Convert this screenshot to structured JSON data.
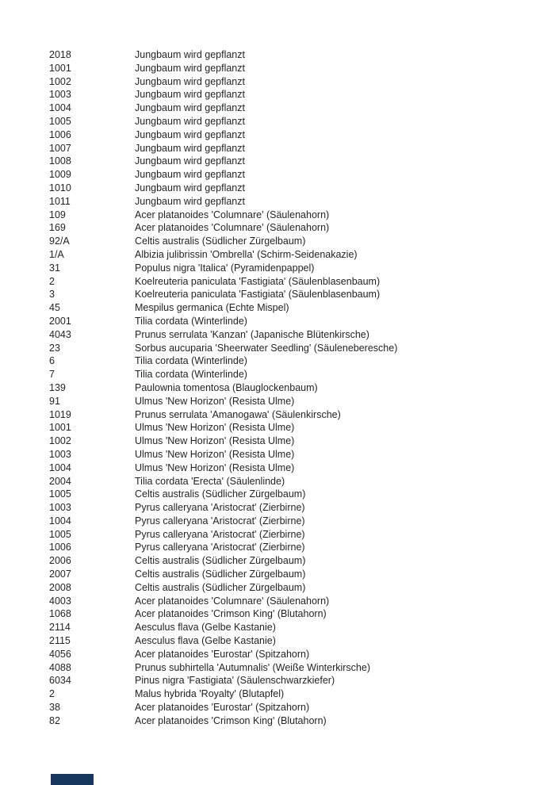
{
  "page": {
    "background": "#ffffff",
    "text_color": "#1f2124"
  },
  "tree_list": {
    "rows": [
      {
        "id": "2018",
        "species": "Jungbaum wird gepflanzt"
      },
      {
        "id": "1001",
        "species": "Jungbaum wird gepflanzt"
      },
      {
        "id": "1002",
        "species": "Jungbaum wird gepflanzt"
      },
      {
        "id": "1003",
        "species": "Jungbaum wird gepflanzt"
      },
      {
        "id": "1004",
        "species": "Jungbaum wird gepflanzt"
      },
      {
        "id": "1005",
        "species": "Jungbaum wird gepflanzt"
      },
      {
        "id": "1006",
        "species": "Jungbaum wird gepflanzt"
      },
      {
        "id": "1007",
        "species": "Jungbaum wird gepflanzt"
      },
      {
        "id": "1008",
        "species": "Jungbaum wird gepflanzt"
      },
      {
        "id": "1009",
        "species": "Jungbaum wird gepflanzt"
      },
      {
        "id": "1010",
        "species": "Jungbaum wird gepflanzt"
      },
      {
        "id": "1011",
        "species": "Jungbaum wird gepflanzt"
      },
      {
        "id": "109",
        "species": "Acer platanoides 'Columnare' (Säulenahorn)"
      },
      {
        "id": "169",
        "species": "Acer platanoides 'Columnare' (Säulenahorn)"
      },
      {
        "id": "92/A",
        "species": "Celtis australis (Südlicher Zürgelbaum)"
      },
      {
        "id": "1/A",
        "species": "Albizia julibrissin 'Ombrella' (Schirm-Seidenakazie)"
      },
      {
        "id": "31",
        "species": "Populus nigra 'Italica' (Pyramidenpappel)"
      },
      {
        "id": "2",
        "species": "Koelreuteria paniculata 'Fastigiata' (Säulenblasenbaum)"
      },
      {
        "id": "3",
        "species": "Koelreuteria paniculata 'Fastigiata' (Säulenblasenbaum)"
      },
      {
        "id": "45",
        "species": "Mespilus germanica (Echte Mispel)"
      },
      {
        "id": "2001",
        "species": "Tilia cordata (Winterlinde)"
      },
      {
        "id": "4043",
        "species": "Prunus serrulata 'Kanzan' (Japanische Blütenkirsche)"
      },
      {
        "id": "23",
        "species": "Sorbus aucuparia 'Sheerwater Seedling' (Säuleneberesche)"
      },
      {
        "id": "6",
        "species": "Tilia cordata (Winterlinde)"
      },
      {
        "id": "7",
        "species": "Tilia cordata (Winterlinde)"
      },
      {
        "id": "139",
        "species": "Paulownia tomentosa (Blauglockenbaum)"
      },
      {
        "id": "91",
        "species": "Ulmus 'New Horizon' (Resista Ulme)"
      },
      {
        "id": "1019",
        "species": "Prunus serrulata 'Amanogawa' (Säulenkirsche)"
      },
      {
        "id": "1001",
        "species": "Ulmus 'New Horizon' (Resista Ulme)"
      },
      {
        "id": "1002",
        "species": "Ulmus 'New Horizon' (Resista Ulme)"
      },
      {
        "id": "1003",
        "species": "Ulmus 'New Horizon' (Resista Ulme)"
      },
      {
        "id": "1004",
        "species": "Ulmus 'New Horizon' (Resista Ulme)"
      },
      {
        "id": "2004",
        "species": "Tilia cordata 'Erecta' (Säulenlinde)"
      },
      {
        "id": "1005",
        "species": "Celtis australis (Südlicher Zürgelbaum)"
      },
      {
        "id": "1003",
        "species": "Pyrus calleryana 'Aristocrat' (Zierbirne)"
      },
      {
        "id": "1004",
        "species": "Pyrus calleryana 'Aristocrat' (Zierbirne)"
      },
      {
        "id": "1005",
        "species": "Pyrus calleryana 'Aristocrat' (Zierbirne)"
      },
      {
        "id": "1006",
        "species": "Pyrus calleryana 'Aristocrat' (Zierbirne)"
      },
      {
        "id": "2006",
        "species": "Celtis australis (Südlicher Zürgelbaum)"
      },
      {
        "id": "2007",
        "species": "Celtis australis (Südlicher Zürgelbaum)"
      },
      {
        "id": "2008",
        "species": "Celtis australis (Südlicher Zürgelbaum)"
      },
      {
        "id": "4003",
        "species": "Acer platanoides 'Columnare' (Säulenahorn)"
      },
      {
        "id": "1068",
        "species": "Acer platanoides 'Crimson King' (Blutahorn)"
      },
      {
        "id": "2114",
        "species": "Aesculus flava (Gelbe Kastanie)"
      },
      {
        "id": "2115",
        "species": "Aesculus flava (Gelbe Kastanie)"
      },
      {
        "id": "4056",
        "species": "Acer platanoides 'Eurostar' (Spitzahorn)"
      },
      {
        "id": "4088",
        "species": "Prunus subhirtella 'Autumnalis' (Weiße Winterkirsche)"
      },
      {
        "id": "6034",
        "species": "Pinus nigra 'Fastigiata' (Säulenschwarzkiefer)"
      },
      {
        "id": "2",
        "species": "Malus hybrida 'Royalty' (Blutapfel)"
      },
      {
        "id": "38",
        "species": "Acer platanoides 'Eurostar' (Spitzahorn)"
      },
      {
        "id": "82",
        "species": "Acer platanoides 'Crimson King' (Blutahorn)"
      }
    ]
  },
  "footer": {
    "marker_color": "#17375e"
  }
}
